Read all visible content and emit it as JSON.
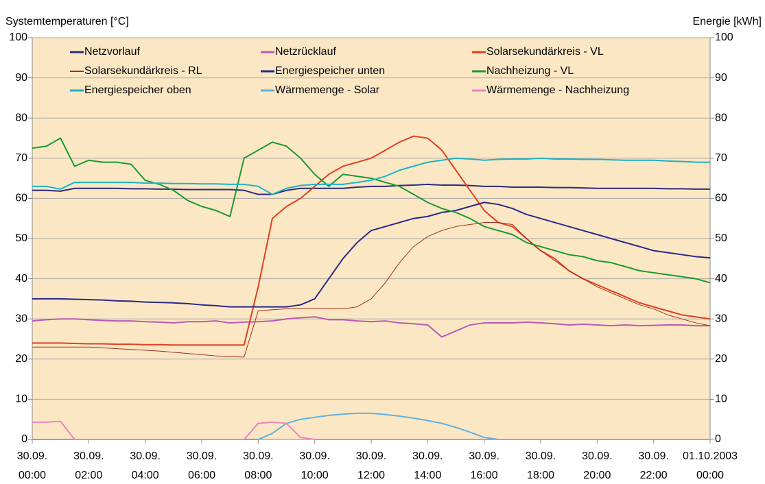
{
  "chart_data": {
    "type": "line",
    "ylabel": "Systemtemperaturen [°C]",
    "y2label": "Energie [kWh]",
    "ylim": [
      0,
      100
    ],
    "yticks": [
      0,
      10,
      20,
      30,
      40,
      50,
      60,
      70,
      80,
      90,
      100
    ],
    "y2lim": [
      0,
      100
    ],
    "y2ticks": [
      0,
      10,
      20,
      30,
      40,
      50,
      60,
      70,
      80,
      90,
      100
    ],
    "xlim": [
      0,
      24
    ],
    "xticks": [
      {
        "value": 0,
        "label": "30.09.\n00:00"
      },
      {
        "value": 2,
        "label": "30.09.\n02:00"
      },
      {
        "value": 4,
        "label": "30.09.\n04:00"
      },
      {
        "value": 6,
        "label": "30.09.\n06:00"
      },
      {
        "value": 8,
        "label": "30.09.\n08:00"
      },
      {
        "value": 10,
        "label": "30.09.\n10:00"
      },
      {
        "value": 12,
        "label": "30.09.\n12:00"
      },
      {
        "value": 14,
        "label": "30.09.\n14:00"
      },
      {
        "value": 16,
        "label": "30.09.\n16:00"
      },
      {
        "value": 18,
        "label": "30.09.\n18:00"
      },
      {
        "value": 20,
        "label": "30.09.\n20:00"
      },
      {
        "value": 22,
        "label": "30.09.\n22:00"
      },
      {
        "value": 24,
        "label": "01.10.2003\n00:00"
      }
    ],
    "grid": true,
    "legend": "top",
    "x": [
      0,
      0.5,
      1,
      1.5,
      2,
      2.5,
      3,
      3.5,
      4,
      4.5,
      5,
      5.5,
      6,
      6.5,
      7,
      7.5,
      8,
      8.5,
      9,
      9.5,
      10,
      10.5,
      11,
      11.5,
      12,
      12.5,
      13,
      13.5,
      14,
      14.5,
      15,
      15.5,
      16,
      16.5,
      17,
      17.5,
      18,
      18.5,
      19,
      19.5,
      20,
      20.5,
      21,
      21.5,
      22,
      22.5,
      23,
      23.5,
      24
    ],
    "series": [
      {
        "name": "Netzvorlauf",
        "color": "#2b2b7f",
        "linewidth": 2,
        "values": [
          62,
          62,
          61.8,
          62.5,
          62.5,
          62.5,
          62.5,
          62.4,
          62.4,
          62.3,
          62.3,
          62.2,
          62.2,
          62.2,
          62.2,
          62,
          61,
          61,
          62,
          62.5,
          62.5,
          62.5,
          62.5,
          62.8,
          63,
          63,
          63.2,
          63.3,
          63.5,
          63.3,
          63.3,
          63.2,
          63,
          63,
          62.8,
          62.8,
          62.8,
          62.7,
          62.7,
          62.6,
          62.5,
          62.5,
          62.5,
          62.5,
          62.5,
          62.4,
          62.4,
          62.3,
          62.3
        ]
      },
      {
        "name": "Netzrücklauf",
        "color": "#b95ab5",
        "linewidth": 2,
        "values": [
          29.5,
          29.8,
          30,
          30,
          29.8,
          29.6,
          29.5,
          29.5,
          29.3,
          29.2,
          29,
          29.3,
          29.3,
          29.5,
          29,
          29.2,
          29.3,
          29.5,
          30,
          30.3,
          30.5,
          29.8,
          29.8,
          29.5,
          29.3,
          29.5,
          29,
          28.8,
          28.5,
          25.5,
          27,
          28.5,
          29,
          29,
          29,
          29.2,
          29,
          28.8,
          28.5,
          28.7,
          28.5,
          28.3,
          28.5,
          28.3,
          28.4,
          28.5,
          28.5,
          28.3,
          28.3
        ]
      },
      {
        "name": "Solarsekundärkreis - VL",
        "color": "#e04020",
        "linewidth": 2,
        "values": [
          24,
          24,
          24,
          23.9,
          23.8,
          23.8,
          23.7,
          23.7,
          23.6,
          23.6,
          23.5,
          23.5,
          23.5,
          23.5,
          23.5,
          23.5,
          38,
          55,
          58,
          60,
          63,
          66,
          68,
          69,
          70,
          72,
          74,
          75.5,
          75,
          72,
          67,
          62,
          57,
          54,
          53,
          50,
          47,
          45,
          42,
          40,
          38.5,
          37,
          35.5,
          34,
          33,
          32,
          31,
          30.5,
          30
        ]
      },
      {
        "name": "Solarsekundärkreis - RL",
        "color": "#a0301c",
        "linewidth": 1,
        "values": [
          23,
          23,
          23,
          23,
          23,
          22.8,
          22.6,
          22.4,
          22.2,
          22,
          21.7,
          21.4,
          21.1,
          20.8,
          20.6,
          20.5,
          32,
          32.3,
          32.5,
          32.5,
          32.5,
          32.5,
          32.5,
          33,
          35,
          39,
          44,
          48,
          50.5,
          52,
          53,
          53.5,
          54,
          54,
          53.5,
          50,
          47,
          44.5,
          42,
          40,
          38,
          36.5,
          35,
          33.5,
          32.5,
          31,
          30,
          29,
          28.3
        ]
      },
      {
        "name": "Energiespeicher unten",
        "color": "#28288a",
        "linewidth": 2,
        "values": [
          35,
          35,
          35,
          34.9,
          34.8,
          34.7,
          34.5,
          34.4,
          34.2,
          34.1,
          34,
          33.8,
          33.5,
          33.3,
          33,
          33,
          33,
          33,
          33,
          33.5,
          35,
          40,
          45,
          49,
          52,
          53,
          54,
          55,
          55.5,
          56.5,
          57,
          58,
          59,
          58.5,
          57.5,
          56,
          55,
          54,
          53,
          52,
          51,
          50,
          49,
          48,
          47,
          46.5,
          46,
          45.5,
          45.2
        ]
      },
      {
        "name": "Nachheizung - VL",
        "color": "#1a9a30",
        "linewidth": 2,
        "values": [
          72.5,
          73,
          75,
          68,
          69.5,
          69,
          69,
          68.5,
          64.5,
          63.5,
          62,
          59.5,
          58,
          57,
          55.5,
          70,
          72,
          74,
          73,
          70,
          66,
          63,
          66,
          65.5,
          65,
          64,
          63,
          61,
          59,
          57.5,
          56.5,
          55,
          53,
          52,
          51,
          49,
          48,
          47,
          46,
          45.5,
          44.5,
          44,
          43,
          42,
          41.5,
          41,
          40.5,
          40,
          39
        ]
      },
      {
        "name": "Energiespeicher oben",
        "color": "#1ab4c8",
        "linewidth": 2,
        "values": [
          63,
          63,
          62.3,
          64,
          64,
          64,
          64,
          64,
          63.8,
          63.8,
          63.7,
          63.7,
          63.6,
          63.6,
          63.5,
          63.5,
          63,
          61,
          62.5,
          63.2,
          63.5,
          63.5,
          63.5,
          64,
          64.5,
          65.5,
          67,
          68,
          69,
          69.5,
          70,
          69.8,
          69.5,
          69.7,
          69.8,
          69.8,
          70,
          69.8,
          69.8,
          69.7,
          69.7,
          69.6,
          69.5,
          69.5,
          69.5,
          69.3,
          69.2,
          69,
          69
        ]
      },
      {
        "name": "Wärmemenge - Solar",
        "color": "#60b0e0",
        "linewidth": 2,
        "axis": "y2",
        "values": [
          0,
          0,
          0,
          0,
          0,
          0,
          0,
          0,
          0,
          0,
          0,
          0,
          0,
          0,
          0,
          0,
          0,
          1.5,
          4,
          5,
          5.5,
          6,
          6.3,
          6.5,
          6.5,
          6.2,
          5.8,
          5.3,
          4.7,
          4,
          3,
          1.8,
          0.5,
          0,
          0,
          0,
          0,
          0,
          0,
          0,
          0,
          0,
          0,
          0,
          0,
          0,
          0,
          0,
          0
        ]
      },
      {
        "name": "Wärmemenge - Nachheizung",
        "color": "#f080c0",
        "linewidth": 2,
        "axis": "y2",
        "values": [
          4.3,
          4.3,
          4.5,
          0,
          0,
          0,
          0,
          0,
          0,
          0,
          0,
          0,
          0,
          0,
          0,
          0,
          4,
          4.3,
          4,
          0.5,
          0,
          0,
          0,
          0,
          0,
          0,
          0,
          0,
          0,
          0,
          0,
          0,
          0,
          0,
          0,
          0,
          0,
          0,
          0,
          0,
          0,
          0,
          0,
          0,
          0,
          0,
          0,
          0,
          0
        ]
      }
    ]
  }
}
